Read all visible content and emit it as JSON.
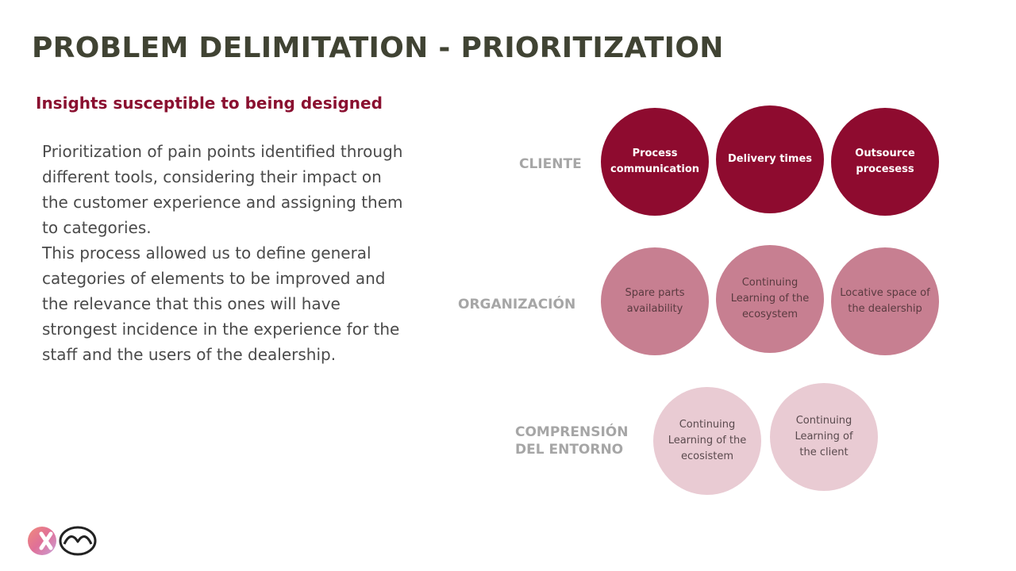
{
  "slide": {
    "title": "PROBLEM DELIMITATION - PRIORITIZATION",
    "subtitle": "Insights susceptible to being designed",
    "paragraph_1": "Prioritization of pain points identified through different tools, considering their impact on the customer experience and assigning them to categories.",
    "paragraph_2": "This process allowed us to define general categories of elements to be improved and the relevance that this ones will have strongest incidence in the experience for the staff and the users of the dealership."
  },
  "rows": {
    "cliente": {
      "label": "CLIENTE",
      "items": [
        "Process communication",
        "Delivery times",
        "Outsource procesess"
      ],
      "color": "#8e0b2f"
    },
    "organizacion": {
      "label": "ORGANIZACIÓN",
      "items": [
        "Spare parts availability",
        "Continuing Learning of the ecosystem",
        "Locative space of the dealership"
      ],
      "color": "#c77f91"
    },
    "comprension": {
      "label_line1": "COMPRENSIÓN",
      "label_line2": "DEL ENTORNO",
      "items": [
        "Continuing Learning of the ecosistem",
        "Continuing Learning of the client"
      ],
      "color": "#e9cbd3"
    }
  },
  "logos": {
    "icons": [
      "x-brand-icon",
      "mazda-logo-icon"
    ]
  }
}
